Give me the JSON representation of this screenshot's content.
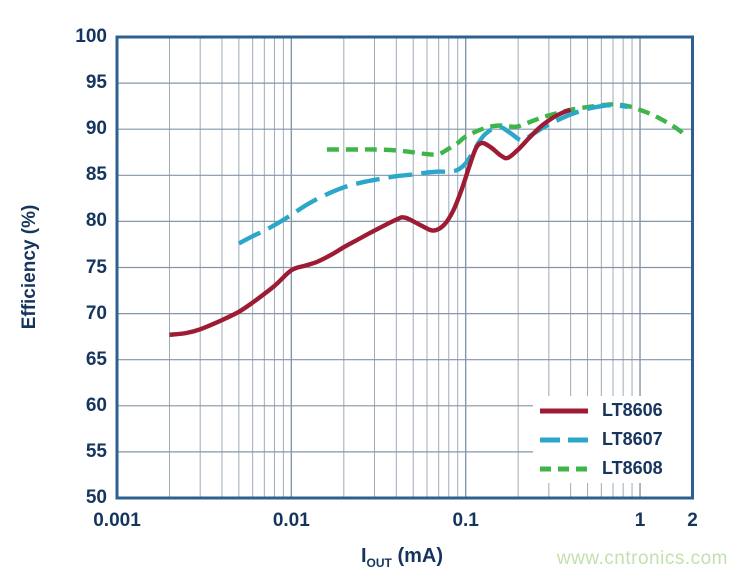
{
  "colors": {
    "text_navy": "#16355e",
    "axis_border": "#2d6090",
    "grid_major": "#8496a8",
    "grid_minor": "#9dabb9",
    "series_red": "#9e1b34",
    "series_blue": "#2ca7c9",
    "series_green": "#3eb54a",
    "watermark_green": "#c3e0af",
    "background": "#ffffff"
  },
  "watermark": "www.cntronics.com",
  "x_title": {
    "symbol": "I",
    "subscript": "OUT",
    "unit": "(mA)"
  },
  "chart_data": {
    "type": "line",
    "title": "",
    "xlabel": "IOUT (mA)",
    "ylabel": "Efficiency (%)",
    "x_scale": "log",
    "xlim": [
      0.001,
      2
    ],
    "ylim": [
      50,
      100
    ],
    "grid": true,
    "legend_position": "bottom-right",
    "x_ticks": [
      0.001,
      0.01,
      0.1,
      1,
      2
    ],
    "x_tick_labels": [
      "0.001",
      "0.01",
      "0.1",
      "1",
      "2"
    ],
    "y_ticks": [
      100,
      95,
      90,
      85,
      80,
      75,
      70,
      65,
      60,
      55,
      50
    ],
    "y_tick_labels": [
      "100",
      "95",
      "90",
      "85",
      "80",
      "75",
      "70",
      "65",
      "60",
      "55",
      "50"
    ],
    "series": [
      {
        "name": "LT8608",
        "color": "#3eb54a",
        "line_style": "short-dash",
        "points": [
          [
            0.016,
            87.8
          ],
          [
            0.02,
            87.8
          ],
          [
            0.025,
            87.8
          ],
          [
            0.03,
            87.8
          ],
          [
            0.04,
            87.7
          ],
          [
            0.05,
            87.5
          ],
          [
            0.06,
            87.3
          ],
          [
            0.07,
            87.3
          ],
          [
            0.08,
            87.9
          ],
          [
            0.09,
            88.5
          ],
          [
            0.1,
            89.2
          ],
          [
            0.12,
            89.9
          ],
          [
            0.14,
            90.3
          ],
          [
            0.16,
            90.4
          ],
          [
            0.18,
            90.3
          ],
          [
            0.2,
            90.3
          ],
          [
            0.25,
            91.0
          ],
          [
            0.3,
            91.5
          ],
          [
            0.4,
            92.1
          ],
          [
            0.5,
            92.4
          ],
          [
            0.6,
            92.6
          ],
          [
            0.7,
            92.7
          ],
          [
            0.8,
            92.6
          ],
          [
            0.9,
            92.4
          ],
          [
            1.0,
            92.1
          ],
          [
            1.2,
            91.5
          ],
          [
            1.5,
            90.5
          ],
          [
            1.7,
            89.8
          ],
          [
            1.85,
            89.2
          ]
        ]
      },
      {
        "name": "LT8607",
        "color": "#2ca7c9",
        "line_style": "long-dash",
        "points": [
          [
            0.005,
            77.6
          ],
          [
            0.006,
            78.4
          ],
          [
            0.007,
            79.0
          ],
          [
            0.008,
            79.6
          ],
          [
            0.01,
            80.7
          ],
          [
            0.012,
            81.7
          ],
          [
            0.015,
            82.7
          ],
          [
            0.02,
            83.7
          ],
          [
            0.025,
            84.2
          ],
          [
            0.03,
            84.5
          ],
          [
            0.04,
            84.9
          ],
          [
            0.05,
            85.1
          ],
          [
            0.06,
            85.3
          ],
          [
            0.07,
            85.4
          ],
          [
            0.08,
            85.4
          ],
          [
            0.09,
            85.6
          ],
          [
            0.1,
            86.3
          ],
          [
            0.11,
            87.5
          ],
          [
            0.12,
            88.7
          ],
          [
            0.13,
            89.5
          ],
          [
            0.145,
            90.1
          ],
          [
            0.16,
            90.2
          ],
          [
            0.18,
            89.6
          ],
          [
            0.21,
            88.8
          ],
          [
            0.24,
            89.4
          ],
          [
            0.28,
            90.2
          ],
          [
            0.33,
            90.9
          ],
          [
            0.4,
            91.6
          ],
          [
            0.5,
            92.2
          ],
          [
            0.6,
            92.5
          ],
          [
            0.7,
            92.6
          ],
          [
            0.8,
            92.5
          ],
          [
            0.85,
            92.4
          ]
        ]
      },
      {
        "name": "LT8606",
        "color": "#9e1b34",
        "line_style": "solid",
        "points": [
          [
            0.002,
            67.7
          ],
          [
            0.0025,
            67.9
          ],
          [
            0.003,
            68.3
          ],
          [
            0.004,
            69.3
          ],
          [
            0.005,
            70.2
          ],
          [
            0.006,
            71.2
          ],
          [
            0.008,
            73.0
          ],
          [
            0.01,
            74.7
          ],
          [
            0.012,
            75.2
          ],
          [
            0.014,
            75.6
          ],
          [
            0.017,
            76.4
          ],
          [
            0.02,
            77.2
          ],
          [
            0.025,
            78.2
          ],
          [
            0.03,
            79.0
          ],
          [
            0.04,
            80.2
          ],
          [
            0.045,
            80.4
          ],
          [
            0.055,
            79.6
          ],
          [
            0.065,
            79.0
          ],
          [
            0.075,
            79.6
          ],
          [
            0.085,
            81.2
          ],
          [
            0.095,
            83.5
          ],
          [
            0.105,
            86.0
          ],
          [
            0.115,
            88.0
          ],
          [
            0.125,
            88.5
          ],
          [
            0.14,
            88.0
          ],
          [
            0.16,
            87.1
          ],
          [
            0.175,
            86.9
          ],
          [
            0.2,
            87.8
          ],
          [
            0.23,
            89.0
          ],
          [
            0.27,
            90.3
          ],
          [
            0.32,
            91.3
          ],
          [
            0.36,
            91.8
          ],
          [
            0.4,
            92.1
          ]
        ]
      }
    ]
  },
  "legend": {
    "items": [
      {
        "label": "LT8606",
        "color": "#9e1b34",
        "line_style": "solid"
      },
      {
        "label": "LT8607",
        "color": "#2ca7c9",
        "line_style": "long-dash"
      },
      {
        "label": "LT8608",
        "color": "#3eb54a",
        "line_style": "short-dash"
      }
    ]
  }
}
